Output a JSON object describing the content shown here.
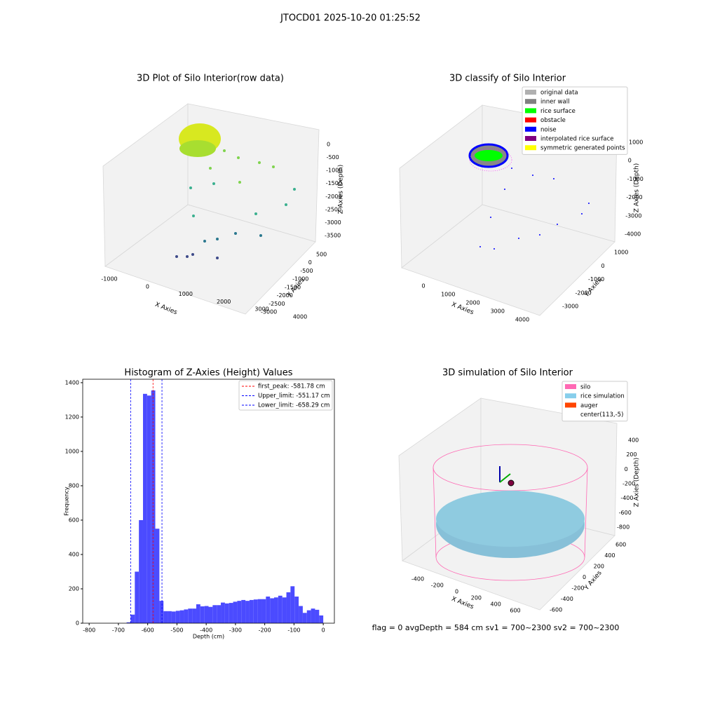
{
  "title": "JTOCD01 2025-10-20 01:25:52",
  "footer": "flag = 0     avgDepth = 584 cm  sv1 = 700~2300  sv2 = 700~2300",
  "chart_data": [
    {
      "type": "scatter3d",
      "title": "3D Plot of Silo Interior(row data)",
      "xlabel": "X Axies",
      "ylabel": "Y Axies",
      "zlabel": "Z Axies (Depth)",
      "xticks": [
        -1000,
        0,
        1000,
        2000,
        3000,
        4000
      ],
      "yticks": [
        500,
        0,
        -500,
        -1000,
        -1500,
        -2000,
        -2500,
        -3000
      ],
      "zticks": [
        0,
        -500,
        -1000,
        -1500,
        -2000,
        -2500,
        -3000,
        -3500
      ]
    },
    {
      "type": "scatter3d",
      "title": "3D classify of Silo Interior",
      "xlabel": "X Axies",
      "ylabel": "Y Axies",
      "zlabel": "Z Axies (Depth)",
      "xticks": [
        0,
        1000,
        2000,
        3000,
        4000
      ],
      "yticks": [
        1000,
        0,
        -1000,
        -2000,
        -3000
      ],
      "zticks": [
        1000,
        0,
        -1000,
        -2000,
        -3000,
        -4000
      ],
      "legend": [
        {
          "name": "original data",
          "color": "#b0b0b0"
        },
        {
          "name": "inner wall",
          "color": "#808080"
        },
        {
          "name": "rice surface",
          "color": "#00ff00"
        },
        {
          "name": "obstacle",
          "color": "#ff0000"
        },
        {
          "name": "noise",
          "color": "#0000ff"
        },
        {
          "name": "interpolated rice surface",
          "color": "#800080"
        },
        {
          "name": "symmetric generated points",
          "color": "#ffff00"
        }
      ]
    },
    {
      "type": "histogram",
      "title": "Histogram of Z-Axies (Height) Values",
      "xlabel": "Depth (cm)",
      "ylabel": "Frequency",
      "color": "#4b4bff",
      "bins": [
        -672,
        -658,
        -644,
        -630,
        -616,
        -602,
        -588,
        -574,
        -560,
        -546,
        -532,
        -518,
        -504,
        -490,
        -476,
        -462,
        -448,
        -434,
        -420,
        -406,
        -392,
        -378,
        -364,
        -350,
        -336,
        -322,
        -308,
        -294,
        -280,
        -266,
        -252,
        -238,
        -224,
        -210,
        -196,
        -182,
        -168,
        -154,
        -140,
        -126,
        -112,
        -98,
        -84,
        -70,
        -56,
        -42,
        -28,
        -14,
        0
      ],
      "counts": [
        5,
        50,
        300,
        600,
        1335,
        1325,
        1355,
        550,
        130,
        70,
        70,
        68,
        72,
        75,
        80,
        85,
        85,
        110,
        98,
        100,
        95,
        105,
        105,
        120,
        115,
        118,
        125,
        130,
        135,
        130,
        135,
        138,
        140,
        140,
        155,
        145,
        150,
        160,
        150,
        180,
        215,
        155,
        100,
        60,
        75,
        85,
        78,
        45
      ],
      "xlim": [
        -822,
        38
      ],
      "ylim": [
        0,
        1420
      ],
      "xticks": [
        -800,
        -700,
        -600,
        -500,
        -400,
        -300,
        -200,
        -100,
        0
      ],
      "yticks": [
        0,
        200,
        400,
        600,
        800,
        1000,
        1200,
        1400
      ],
      "vlines": [
        {
          "name": "first_peak: -581.78 cm",
          "value": -581.78,
          "color": "#ff0000"
        },
        {
          "name": "Upper_limit: -551.17 cm",
          "value": -551.17,
          "color": "#0000ff"
        },
        {
          "name": "Lower_limit: -658.29 cm",
          "value": -658.29,
          "color": "#0000ff"
        }
      ]
    },
    {
      "type": "scatter3d",
      "title": "3D simulation of Silo Interior",
      "xlabel": "X Axies",
      "ylabel": "Y Axies",
      "zlabel": "Z Axies (Depth)",
      "xticks": [
        -400,
        -200,
        0,
        200,
        400,
        600
      ],
      "yticks": [
        600,
        400,
        200,
        0,
        -200,
        -400,
        -600
      ],
      "zticks": [
        400,
        200,
        0,
        -200,
        -400,
        -600,
        -800
      ],
      "legend": [
        {
          "name": "silo",
          "color": "#ff69b4"
        },
        {
          "name": "rice simulation",
          "color": "#87ceeb"
        },
        {
          "name": "auger",
          "color": "#ff4500"
        },
        {
          "name": "center(113,-5)",
          "color": "#ffffff"
        }
      ]
    }
  ]
}
